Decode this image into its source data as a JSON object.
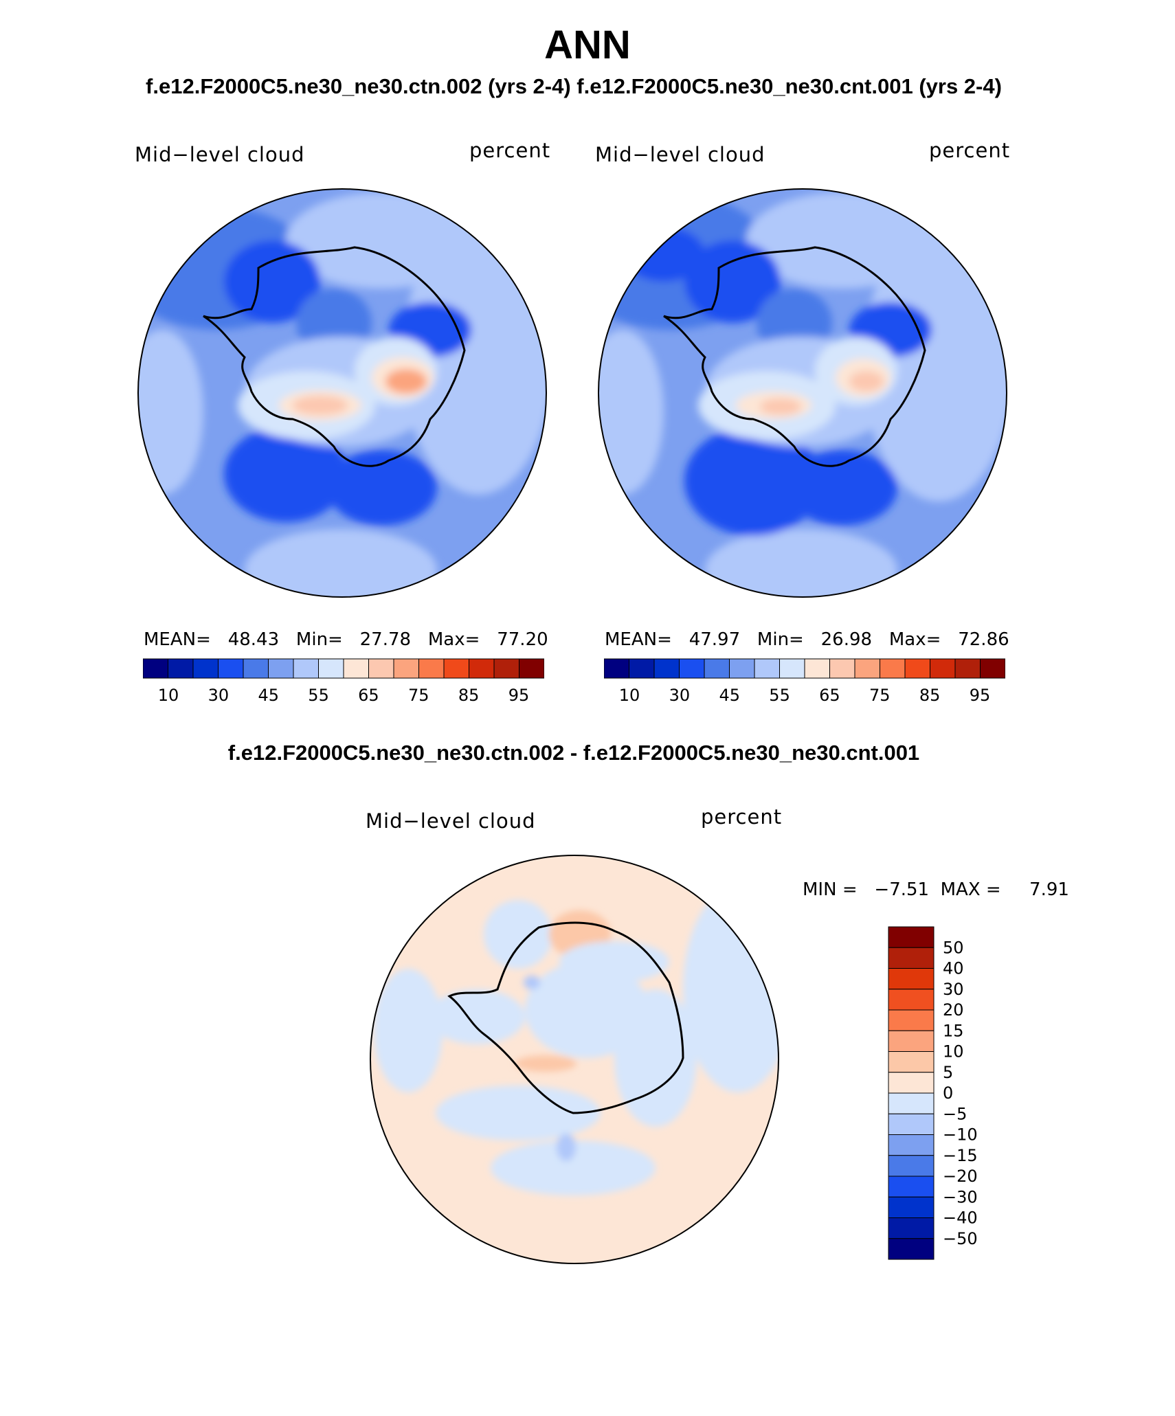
{
  "header": {
    "season": "ANN",
    "subtitle": "f.e12.F2000C5.ne30_ne30.ctn.002 (yrs 2-4) f.e12.F2000C5.ne30_ne30.cnt.001 (yrs 2-4)"
  },
  "panels": [
    {
      "variable": "Mid−level cloud",
      "units": "percent",
      "mean_label": "MEAN=",
      "mean": "48.43",
      "min_label": "Min=",
      "min": "27.78",
      "max_label": "Max=",
      "max": "77.20"
    },
    {
      "variable": "Mid−level cloud",
      "units": "percent",
      "mean_label": "MEAN=",
      "mean": "47.97",
      "min_label": "Min=",
      "min": "26.98",
      "max_label": "Max=",
      "max": "72.86"
    }
  ],
  "abs_colorbar": {
    "colors": [
      "#000080",
      "#001aa6",
      "#0033cc",
      "#1a4ff0",
      "#4a7ae8",
      "#7da0f0",
      "#b0c8fa",
      "#d6e6fc",
      "#fde6d6",
      "#fcc8b0",
      "#fba47e",
      "#fa7a4a",
      "#f04a1a",
      "#d12a0a",
      "#b0200a",
      "#800000"
    ],
    "labels": [
      "10",
      "30",
      "45",
      "55",
      "65",
      "75",
      "85",
      "95"
    ]
  },
  "difference": {
    "title": "f.e12.F2000C5.ne30_ne30.ctn.002 - f.e12.F2000C5.ne30_ne30.cnt.001",
    "variable": "Mid−level cloud",
    "units": "percent",
    "min_label": "MIN =",
    "min": "−7.51",
    "max_label": "MAX =",
    "max": "7.91",
    "colorbar": {
      "colors": [
        "#800000",
        "#b0200a",
        "#e0380a",
        "#f05020",
        "#fa7a4a",
        "#fba47e",
        "#fcc8a8",
        "#fde6d6",
        "#d6e6fc",
        "#b0c8fa",
        "#7da0f0",
        "#4a7ae8",
        "#1a4ff0",
        "#0033cc",
        "#001aa6",
        "#000080"
      ],
      "labels": [
        "50",
        "40",
        "30",
        "20",
        "15",
        "10",
        "5",
        "0",
        "−5",
        "−10",
        "−15",
        "−20",
        "−30",
        "−40",
        "−50"
      ]
    }
  }
}
